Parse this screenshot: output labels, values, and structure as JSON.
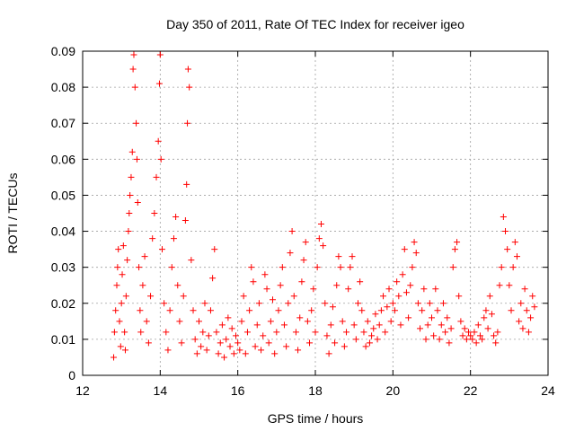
{
  "chart_data": {
    "type": "scatter",
    "title": "Day 350 of 2011, Rate Of TEC Index for receiver igeo",
    "xlabel": "GPS time / hours",
    "ylabel": "ROTI / TECUs",
    "xlim": [
      12,
      24
    ],
    "ylim": [
      0,
      0.09
    ],
    "x_ticks": [
      "12",
      "14",
      "16",
      "18",
      "20",
      "22",
      "24"
    ],
    "y_ticks": [
      "0",
      "0.01",
      "0.02",
      "0.03",
      "0.04",
      "0.05",
      "0.06",
      "0.07",
      "0.08",
      "0.09"
    ],
    "grid": true,
    "marker": "+",
    "series": [
      {
        "color": "#ff0000",
        "points": [
          [
            12.8,
            0.005
          ],
          [
            12.82,
            0.012
          ],
          [
            12.85,
            0.018
          ],
          [
            12.88,
            0.025
          ],
          [
            12.9,
            0.03
          ],
          [
            12.92,
            0.035
          ],
          [
            12.95,
            0.015
          ],
          [
            12.98,
            0.008
          ],
          [
            13.0,
            0.02
          ],
          [
            13.02,
            0.028
          ],
          [
            13.05,
            0.036
          ],
          [
            13.08,
            0.012
          ],
          [
            13.1,
            0.007
          ],
          [
            13.12,
            0.022
          ],
          [
            13.15,
            0.032
          ],
          [
            13.18,
            0.04
          ],
          [
            13.2,
            0.045
          ],
          [
            13.22,
            0.05
          ],
          [
            13.25,
            0.055
          ],
          [
            13.28,
            0.062
          ],
          [
            13.3,
            0.085
          ],
          [
            13.32,
            0.089
          ],
          [
            13.35,
            0.08
          ],
          [
            13.38,
            0.07
          ],
          [
            13.4,
            0.06
          ],
          [
            13.42,
            0.048
          ],
          [
            13.45,
            0.03
          ],
          [
            13.48,
            0.018
          ],
          [
            13.5,
            0.012
          ],
          [
            13.55,
            0.025
          ],
          [
            13.6,
            0.033
          ],
          [
            13.65,
            0.015
          ],
          [
            13.7,
            0.009
          ],
          [
            13.75,
            0.022
          ],
          [
            13.8,
            0.038
          ],
          [
            13.85,
            0.045
          ],
          [
            13.9,
            0.055
          ],
          [
            13.95,
            0.065
          ],
          [
            13.98,
            0.081
          ],
          [
            14.0,
            0.089
          ],
          [
            14.02,
            0.06
          ],
          [
            14.05,
            0.035
          ],
          [
            14.1,
            0.02
          ],
          [
            14.15,
            0.012
          ],
          [
            14.2,
            0.007
          ],
          [
            14.25,
            0.018
          ],
          [
            14.3,
            0.03
          ],
          [
            14.35,
            0.038
          ],
          [
            14.4,
            0.044
          ],
          [
            14.45,
            0.025
          ],
          [
            14.5,
            0.015
          ],
          [
            14.55,
            0.009
          ],
          [
            14.6,
            0.022
          ],
          [
            14.65,
            0.043
          ],
          [
            14.68,
            0.053
          ],
          [
            14.7,
            0.07
          ],
          [
            14.72,
            0.085
          ],
          [
            14.75,
            0.08
          ],
          [
            14.8,
            0.032
          ],
          [
            14.85,
            0.018
          ],
          [
            14.9,
            0.01
          ],
          [
            14.95,
            0.006
          ],
          [
            15.0,
            0.015
          ],
          [
            15.05,
            0.008
          ],
          [
            15.1,
            0.012
          ],
          [
            15.15,
            0.02
          ],
          [
            15.2,
            0.007
          ],
          [
            15.25,
            0.011
          ],
          [
            15.3,
            0.018
          ],
          [
            15.35,
            0.027
          ],
          [
            15.4,
            0.035
          ],
          [
            15.45,
            0.012
          ],
          [
            15.5,
            0.006
          ],
          [
            15.55,
            0.009
          ],
          [
            15.6,
            0.014
          ],
          [
            15.65,
            0.005
          ],
          [
            15.7,
            0.01
          ],
          [
            15.75,
            0.016
          ],
          [
            15.8,
            0.008
          ],
          [
            15.85,
            0.013
          ],
          [
            15.9,
            0.006
          ],
          [
            15.95,
            0.011
          ],
          [
            16.0,
            0.009
          ],
          [
            16.05,
            0.007
          ],
          [
            16.1,
            0.015
          ],
          [
            16.15,
            0.022
          ],
          [
            16.2,
            0.006
          ],
          [
            16.25,
            0.012
          ],
          [
            16.3,
            0.018
          ],
          [
            16.35,
            0.03
          ],
          [
            16.4,
            0.026
          ],
          [
            16.45,
            0.008
          ],
          [
            16.5,
            0.014
          ],
          [
            16.55,
            0.02
          ],
          [
            16.6,
            0.007
          ],
          [
            16.65,
            0.011
          ],
          [
            16.7,
            0.028
          ],
          [
            16.75,
            0.024
          ],
          [
            16.8,
            0.009
          ],
          [
            16.85,
            0.015
          ],
          [
            16.9,
            0.021
          ],
          [
            16.95,
            0.006
          ],
          [
            17.0,
            0.012
          ],
          [
            17.05,
            0.018
          ],
          [
            17.1,
            0.025
          ],
          [
            17.15,
            0.03
          ],
          [
            17.2,
            0.014
          ],
          [
            17.25,
            0.008
          ],
          [
            17.3,
            0.02
          ],
          [
            17.35,
            0.034
          ],
          [
            17.4,
            0.04
          ],
          [
            17.45,
            0.022
          ],
          [
            17.5,
            0.012
          ],
          [
            17.55,
            0.007
          ],
          [
            17.6,
            0.016
          ],
          [
            17.65,
            0.026
          ],
          [
            17.7,
            0.032
          ],
          [
            17.75,
            0.037
          ],
          [
            17.8,
            0.015
          ],
          [
            17.85,
            0.009
          ],
          [
            17.9,
            0.018
          ],
          [
            17.95,
            0.024
          ],
          [
            18.0,
            0.012
          ],
          [
            18.05,
            0.03
          ],
          [
            18.1,
            0.038
          ],
          [
            18.15,
            0.042
          ],
          [
            18.2,
            0.036
          ],
          [
            18.25,
            0.02
          ],
          [
            18.3,
            0.011
          ],
          [
            18.35,
            0.006
          ],
          [
            18.4,
            0.014
          ],
          [
            18.45,
            0.019
          ],
          [
            18.5,
            0.009
          ],
          [
            18.55,
            0.025
          ],
          [
            18.6,
            0.033
          ],
          [
            18.65,
            0.03
          ],
          [
            18.7,
            0.015
          ],
          [
            18.75,
            0.008
          ],
          [
            18.8,
            0.012
          ],
          [
            18.85,
            0.024
          ],
          [
            18.9,
            0.03
          ],
          [
            18.95,
            0.033
          ],
          [
            19.0,
            0.014
          ],
          [
            19.05,
            0.01
          ],
          [
            19.1,
            0.02
          ],
          [
            19.15,
            0.026
          ],
          [
            19.2,
            0.018
          ],
          [
            19.25,
            0.012
          ],
          [
            19.3,
            0.008
          ],
          [
            19.35,
            0.015
          ],
          [
            19.4,
            0.009
          ],
          [
            19.45,
            0.011
          ],
          [
            19.5,
            0.013
          ],
          [
            19.55,
            0.017
          ],
          [
            19.6,
            0.01
          ],
          [
            19.65,
            0.014
          ],
          [
            19.7,
            0.018
          ],
          [
            19.75,
            0.022
          ],
          [
            19.8,
            0.012
          ],
          [
            19.85,
            0.019
          ],
          [
            19.9,
            0.024
          ],
          [
            19.95,
            0.015
          ],
          [
            20.0,
            0.02
          ],
          [
            20.05,
            0.018
          ],
          [
            20.1,
            0.026
          ],
          [
            20.15,
            0.022
          ],
          [
            20.2,
            0.014
          ],
          [
            20.25,
            0.028
          ],
          [
            20.3,
            0.035
          ],
          [
            20.35,
            0.023
          ],
          [
            20.4,
            0.016
          ],
          [
            20.45,
            0.025
          ],
          [
            20.5,
            0.03
          ],
          [
            20.55,
            0.037
          ],
          [
            20.6,
            0.034
          ],
          [
            20.65,
            0.02
          ],
          [
            20.7,
            0.013
          ],
          [
            20.75,
            0.018
          ],
          [
            20.8,
            0.024
          ],
          [
            20.85,
            0.01
          ],
          [
            20.9,
            0.014
          ],
          [
            20.95,
            0.02
          ],
          [
            21.0,
            0.016
          ],
          [
            21.05,
            0.011
          ],
          [
            21.1,
            0.024
          ],
          [
            21.15,
            0.018
          ],
          [
            21.2,
            0.01
          ],
          [
            21.25,
            0.014
          ],
          [
            21.3,
            0.02
          ],
          [
            21.35,
            0.012
          ],
          [
            21.4,
            0.016
          ],
          [
            21.45,
            0.009
          ],
          [
            21.5,
            0.013
          ],
          [
            21.55,
            0.03
          ],
          [
            21.6,
            0.035
          ],
          [
            21.65,
            0.037
          ],
          [
            21.7,
            0.022
          ],
          [
            21.75,
            0.015
          ],
          [
            21.8,
            0.011
          ],
          [
            21.85,
            0.013
          ],
          [
            21.9,
            0.01
          ],
          [
            21.95,
            0.012
          ],
          [
            22.0,
            0.011
          ],
          [
            22.05,
            0.01
          ],
          [
            22.1,
            0.012
          ],
          [
            22.15,
            0.009
          ],
          [
            22.2,
            0.014
          ],
          [
            22.25,
            0.011
          ],
          [
            22.3,
            0.01
          ],
          [
            22.35,
            0.016
          ],
          [
            22.4,
            0.018
          ],
          [
            22.45,
            0.013
          ],
          [
            22.5,
            0.022
          ],
          [
            22.55,
            0.017
          ],
          [
            22.6,
            0.011
          ],
          [
            22.65,
            0.009
          ],
          [
            22.7,
            0.012
          ],
          [
            22.75,
            0.025
          ],
          [
            22.8,
            0.03
          ],
          [
            22.85,
            0.044
          ],
          [
            22.9,
            0.04
          ],
          [
            22.95,
            0.035
          ],
          [
            23.0,
            0.025
          ],
          [
            23.05,
            0.018
          ],
          [
            23.1,
            0.03
          ],
          [
            23.15,
            0.037
          ],
          [
            23.2,
            0.033
          ],
          [
            23.25,
            0.015
          ],
          [
            23.3,
            0.02
          ],
          [
            23.35,
            0.013
          ],
          [
            23.4,
            0.024
          ],
          [
            23.45,
            0.018
          ],
          [
            23.5,
            0.012
          ],
          [
            23.55,
            0.016
          ],
          [
            23.6,
            0.022
          ],
          [
            23.65,
            0.019
          ]
        ]
      }
    ]
  }
}
